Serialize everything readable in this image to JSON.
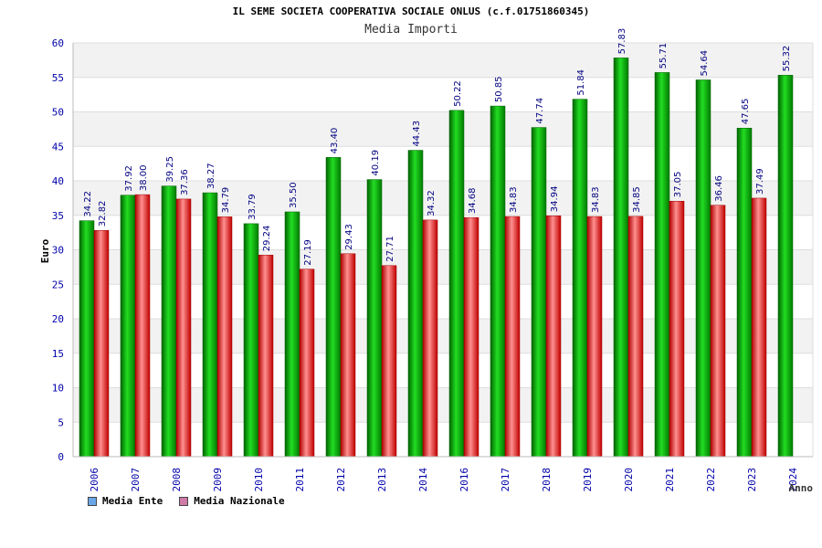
{
  "chart_data": {
    "type": "bar",
    "title": "IL SEME SOCIETA COOPERATIVA SOCIALE ONLUS (c.f.01751860345)",
    "subtitle": "Media Importi",
    "xlabel": "Anno",
    "ylabel": "Euro",
    "ylim": [
      0,
      60
    ],
    "yticks": [
      0,
      5,
      10,
      15,
      20,
      25,
      30,
      35,
      40,
      45,
      50,
      55,
      60
    ],
    "grid": true,
    "legend_position": "bottom-left",
    "categories": [
      "2006",
      "2007",
      "2008",
      "2009",
      "2010",
      "2011",
      "2012",
      "2013",
      "2014",
      "2016",
      "2017",
      "2018",
      "2019",
      "2020",
      "2021",
      "2022",
      "2023",
      "2024"
    ],
    "series": [
      {
        "name": "Media Ente",
        "color": "#00aa00",
        "legend_color": "#6aa6e6",
        "values": [
          34.22,
          37.92,
          39.25,
          38.27,
          33.79,
          35.5,
          43.4,
          40.19,
          44.43,
          50.22,
          50.85,
          47.74,
          51.84,
          57.83,
          55.71,
          54.64,
          47.65,
          55.32
        ],
        "labels": [
          "34.22",
          "37.92",
          "39.25",
          "38.27",
          "33.79",
          "35.50",
          "43.40",
          "40.19",
          "44.43",
          "50.22",
          "50.85",
          "47.74",
          "51.84",
          "57.83",
          "55.71",
          "54.64",
          "47.65",
          "55.32"
        ]
      },
      {
        "name": "Media Nazionale",
        "color": "#e02020",
        "legend_color": "#d07aa8",
        "values": [
          32.82,
          38.0,
          37.36,
          34.79,
          29.24,
          27.19,
          29.43,
          27.71,
          34.32,
          34.68,
          34.83,
          34.94,
          34.83,
          34.85,
          37.05,
          36.46,
          37.49,
          null
        ],
        "labels": [
          "32.82",
          "38.00",
          "37.36",
          "34.79",
          "29.24",
          "27.19",
          "29.43",
          "27.71",
          "34.32",
          "34.68",
          "34.83",
          "34.94",
          "34.83",
          "34.85",
          "37.05",
          "36.46",
          "37.49",
          ""
        ]
      }
    ],
    "colors": {
      "axis_text": "#0000aa",
      "data_label": "#000080",
      "band": "#f2f2f2"
    }
  }
}
